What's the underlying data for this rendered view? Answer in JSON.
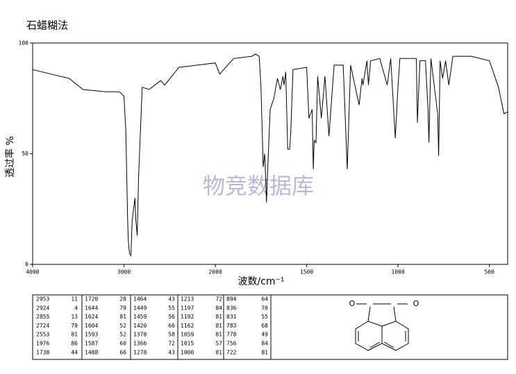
{
  "chart_data": {
    "type": "line",
    "title": "石蜡糊法",
    "watermark": "物竞数据库",
    "x_label": "波数/cm⁻¹",
    "y_label": "透过率 %",
    "xlim": [
      4000,
      400
    ],
    "x_scale_break": 2000,
    "x_scale_ratio_above_break": 2,
    "ylim": [
      0,
      100
    ],
    "xticks": [
      4000,
      3000,
      2000,
      1500,
      1000,
      500
    ],
    "yticks": [
      0,
      50,
      100
    ],
    "color": "#000000",
    "x": [
      4000,
      3800,
      3600,
      3450,
      3200,
      3050,
      3000,
      2980,
      2960,
      2953,
      2940,
      2924,
      2910,
      2880,
      2870,
      2855,
      2840,
      2800,
      2724,
      2600,
      2553,
      2400,
      2200,
      2000,
      1976,
      1900,
      1800,
      1780,
      1760,
      1750,
      1738,
      1730,
      1725,
      1720,
      1715,
      1700,
      1680,
      1660,
      1644,
      1630,
      1624,
      1615,
      1604,
      1593,
      1587,
      1575,
      1500,
      1488,
      1470,
      1464,
      1459,
      1449,
      1440,
      1420,
      1400,
      1378,
      1366,
      1350,
      1300,
      1278,
      1260,
      1213,
      1197,
      1192,
      1170,
      1162,
      1150,
      1100,
      1059,
      1040,
      1015,
      1000,
      990,
      900,
      894,
      880,
      850,
      836,
      831,
      820,
      783,
      778,
      770,
      756,
      740,
      722,
      700,
      600,
      500,
      450,
      420,
      400
    ],
    "values": [
      88,
      86,
      84,
      79,
      78,
      78,
      76,
      60,
      20,
      11,
      5,
      4,
      20,
      30,
      20,
      13,
      40,
      80,
      79,
      83,
      81,
      89,
      90,
      91,
      86,
      93,
      94,
      95,
      94,
      80,
      44,
      50,
      40,
      28,
      40,
      70,
      75,
      84,
      79,
      85,
      81,
      87,
      52,
      52,
      60,
      88,
      89,
      66,
      70,
      43,
      56,
      55,
      85,
      66,
      85,
      58,
      72,
      90,
      90,
      43,
      90,
      72,
      84,
      81,
      92,
      81,
      92,
      93,
      81,
      93,
      57,
      81,
      93,
      93,
      64,
      92,
      92,
      70,
      55,
      93,
      68,
      49,
      92,
      84,
      92,
      81,
      94,
      94,
      92,
      80,
      68,
      69
    ]
  },
  "peak_table": [
    [
      [
        2953,
        11
      ],
      [
        2924,
        4
      ],
      [
        2855,
        13
      ],
      [
        2724,
        79
      ],
      [
        2553,
        81
      ],
      [
        1976,
        86
      ],
      [
        1738,
        44
      ]
    ],
    [
      [
        1720,
        28
      ],
      [
        1644,
        79
      ],
      [
        1624,
        81
      ],
      [
        1604,
        52
      ],
      [
        1593,
        52
      ],
      [
        1587,
        60
      ],
      [
        1488,
        66
      ]
    ],
    [
      [
        1464,
        43
      ],
      [
        1449,
        55
      ],
      [
        1459,
        56
      ],
      [
        1420,
        66
      ],
      [
        1378,
        58
      ],
      [
        1366,
        72
      ],
      [
        1278,
        43
      ]
    ],
    [
      [
        1213,
        72
      ],
      [
        1197,
        84
      ],
      [
        1192,
        81
      ],
      [
        1162,
        81
      ],
      [
        1059,
        81
      ],
      [
        1015,
        57
      ],
      [
        1000,
        81
      ]
    ],
    [
      [
        894,
        64
      ],
      [
        836,
        70
      ],
      [
        831,
        55
      ],
      [
        783,
        68
      ],
      [
        778,
        49
      ],
      [
        756,
        84
      ],
      [
        722,
        81
      ]
    ]
  ],
  "structure_atoms": [
    "O",
    "O"
  ]
}
